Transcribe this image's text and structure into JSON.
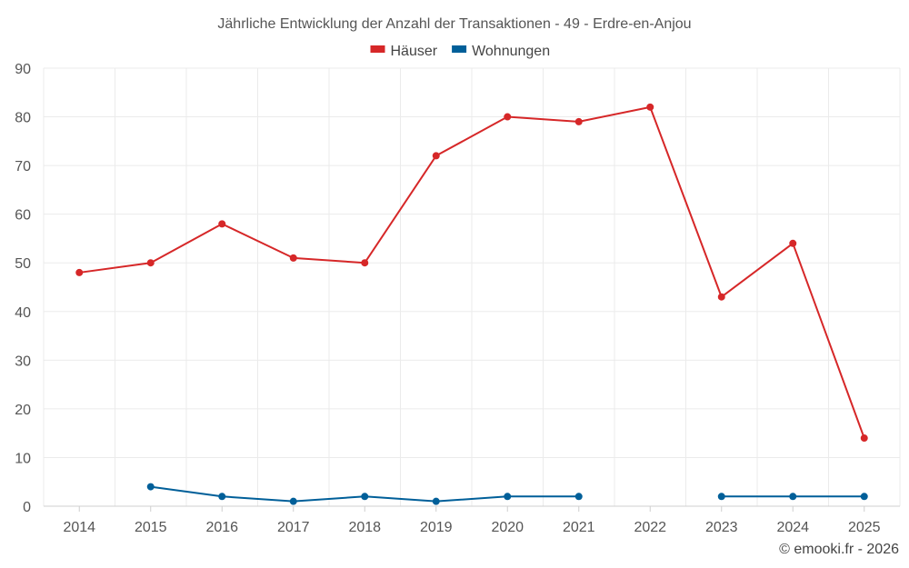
{
  "chart_data": {
    "type": "line",
    "title": "Jährliche Entwicklung der Anzahl der Transaktionen - 49 - Erdre-en-Anjou",
    "categories": [
      "2014",
      "2015",
      "2016",
      "2017",
      "2018",
      "2019",
      "2020",
      "2021",
      "2022",
      "2023",
      "2024",
      "2025"
    ],
    "series": [
      {
        "name": "Häuser",
        "color": "#d62728",
        "values": [
          48,
          50,
          58,
          51,
          50,
          72,
          80,
          79,
          82,
          43,
          54,
          14
        ]
      },
      {
        "name": "Wohnungen",
        "color": "#005f99",
        "values": [
          null,
          4,
          2,
          1,
          2,
          1,
          2,
          2,
          null,
          2,
          2,
          2
        ]
      }
    ],
    "ylim": [
      0,
      90
    ],
    "yticks": [
      0,
      10,
      20,
      30,
      40,
      50,
      60,
      70,
      80,
      90
    ],
    "grid": true,
    "legend": "top-center",
    "xlabel": "",
    "ylabel": ""
  },
  "credit": "© emooki.fr - 2026"
}
